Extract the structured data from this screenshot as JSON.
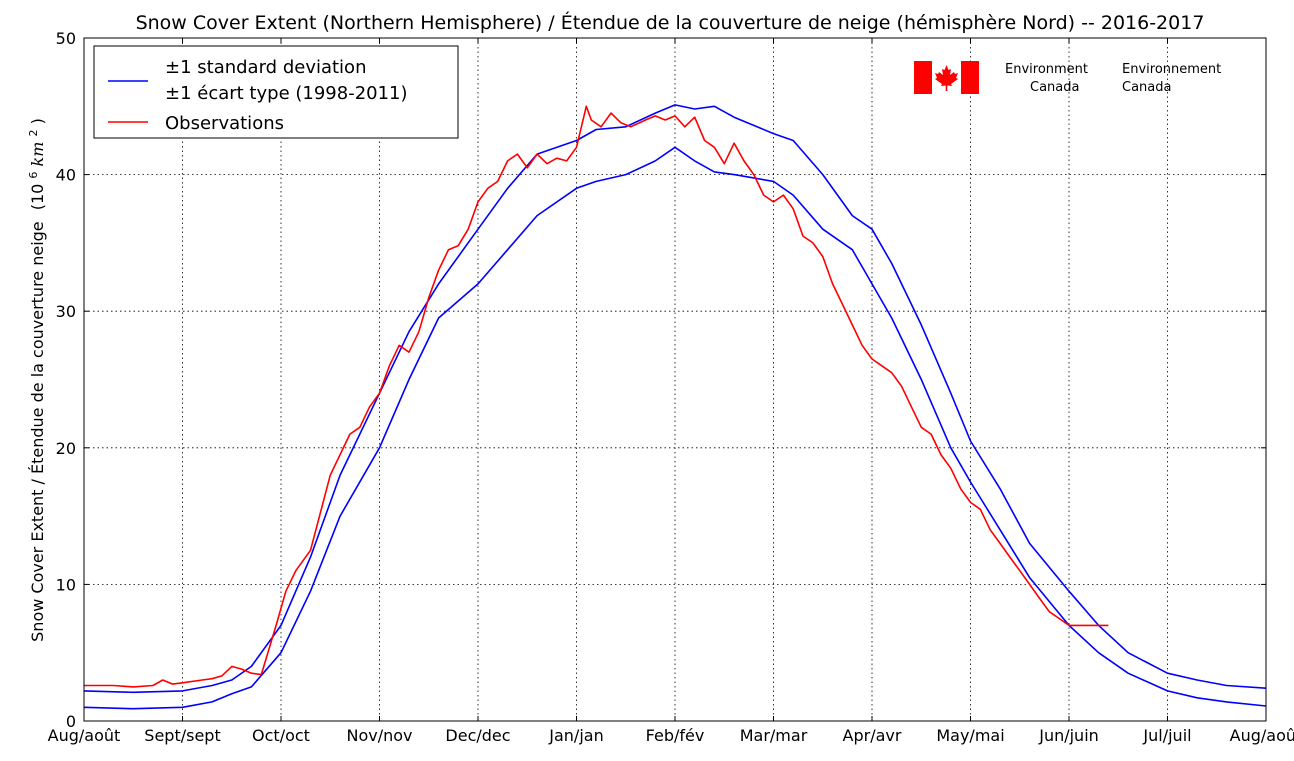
{
  "chart_data": {
    "type": "line",
    "title": "Snow Cover Extent (Northern Hemisphere) / Étendue de la couverture de neige (hémisphère Nord) -- 2016-2017",
    "ylabel": "Snow Cover Extent / Étendue de la couverture neige",
    "ylabel_unit": "(10",
    "ylabel_unit_sup": "6",
    "ylabel_unit_rest": " km",
    "ylabel_unit_sup2": "2",
    "ylabel_unit_close": " )",
    "ylim": [
      0,
      50
    ],
    "xlim": [
      0,
      12
    ],
    "grid": true,
    "legend_position": "top-left",
    "x_tick_labels": [
      "Aug/août",
      "Sept/sept",
      "Oct/oct",
      "Nov/nov",
      "Dec/dec",
      "Jan/jan",
      "Feb/fév",
      "Mar/mar",
      "Apr/avr",
      "May/mai",
      "Jun/juin",
      "Jul/juil",
      "Aug/août"
    ],
    "y_tick_labels": [
      "0",
      "10",
      "20",
      "30",
      "40",
      "50"
    ],
    "legend": {
      "std_line1": "±1 standard deviation",
      "std_line2": "±1 écart type (1998-2011)",
      "obs": "Observations"
    },
    "colors": {
      "std": "#0000ff",
      "obs": "#ff0000",
      "flag_red": "#ff0000"
    },
    "series": [
      {
        "name": "±1 standard deviation",
        "role": "upper",
        "x": [
          0,
          0.5,
          1,
          1.3,
          1.5,
          1.7,
          2,
          2.3,
          2.6,
          3,
          3.3,
          3.6,
          4,
          4.3,
          4.6,
          5,
          5.2,
          5.5,
          5.8,
          6,
          6.2,
          6.4,
          6.6,
          7,
          7.2,
          7.5,
          7.8,
          8,
          8.2,
          8.5,
          8.8,
          9,
          9.3,
          9.6,
          10,
          10.3,
          10.6,
          11,
          11.3,
          11.6,
          12
        ],
        "values": [
          2.2,
          2.1,
          2.2,
          2.6,
          3.0,
          4.0,
          7.0,
          12.0,
          18.0,
          24.0,
          28.5,
          32.0,
          36.0,
          39.0,
          41.5,
          42.5,
          43.3,
          43.5,
          44.5,
          45.1,
          44.8,
          45.0,
          44.2,
          43.0,
          42.5,
          40.0,
          37.0,
          36.0,
          33.5,
          29.0,
          24.0,
          20.5,
          17.0,
          13.0,
          9.5,
          7.0,
          5.0,
          3.5,
          3.0,
          2.6,
          2.4
        ]
      },
      {
        "name": "±1 écart type (1998-2011)",
        "role": "lower",
        "x": [
          0,
          0.5,
          1,
          1.3,
          1.5,
          1.7,
          2,
          2.3,
          2.6,
          3,
          3.3,
          3.6,
          4,
          4.3,
          4.6,
          5,
          5.2,
          5.5,
          5.8,
          6,
          6.2,
          6.4,
          6.6,
          7,
          7.2,
          7.5,
          7.8,
          8,
          8.2,
          8.5,
          8.8,
          9,
          9.3,
          9.6,
          10,
          10.3,
          10.6,
          11,
          11.3,
          11.6,
          12
        ],
        "values": [
          1.0,
          0.9,
          1.0,
          1.4,
          2.0,
          2.5,
          5.0,
          9.5,
          15.0,
          20.0,
          25.0,
          29.5,
          32.0,
          34.5,
          37.0,
          39.0,
          39.5,
          40.0,
          41.0,
          42.0,
          41.0,
          40.2,
          40.0,
          39.5,
          38.5,
          36.0,
          34.5,
          32.0,
          29.5,
          25.0,
          20.0,
          17.5,
          14.0,
          10.5,
          7.0,
          5.0,
          3.5,
          2.2,
          1.7,
          1.4,
          1.1
        ]
      },
      {
        "name": "Observations",
        "role": "obs",
        "x": [
          0,
          0.3,
          0.5,
          0.7,
          0.8,
          0.9,
          1.0,
          1.2,
          1.3,
          1.4,
          1.5,
          1.6,
          1.7,
          1.8,
          1.95,
          2.05,
          2.15,
          2.3,
          2.5,
          2.7,
          2.8,
          2.9,
          3.0,
          3.1,
          3.2,
          3.3,
          3.4,
          3.5,
          3.6,
          3.7,
          3.8,
          3.9,
          4.0,
          4.1,
          4.2,
          4.3,
          4.4,
          4.5,
          4.6,
          4.7,
          4.8,
          4.9,
          5.0,
          5.1,
          5.15,
          5.25,
          5.35,
          5.45,
          5.55,
          5.7,
          5.8,
          5.9,
          6.0,
          6.1,
          6.2,
          6.3,
          6.4,
          6.5,
          6.6,
          6.7,
          6.8,
          6.9,
          7.0,
          7.1,
          7.2,
          7.3,
          7.4,
          7.5,
          7.6,
          7.7,
          7.8,
          7.9,
          8.0,
          8.1,
          8.2,
          8.3,
          8.4,
          8.5,
          8.6,
          8.7,
          8.8,
          8.9,
          9.0,
          9.1,
          9.2,
          9.3,
          9.4,
          9.5,
          9.6,
          9.7,
          9.8,
          9.9,
          10.0,
          10.1,
          10.2,
          10.3,
          10.4
        ],
        "values": [
          2.6,
          2.6,
          2.5,
          2.6,
          3.0,
          2.7,
          2.8,
          3.0,
          3.1,
          3.3,
          4.0,
          3.8,
          3.5,
          3.4,
          7.0,
          9.5,
          11.0,
          12.5,
          18.0,
          21.0,
          21.5,
          23.0,
          24.0,
          26.0,
          27.5,
          27.0,
          28.5,
          31.0,
          33.0,
          34.5,
          34.8,
          36.0,
          38.0,
          39.0,
          39.5,
          41.0,
          41.5,
          40.5,
          41.5,
          40.8,
          41.2,
          41.0,
          42.0,
          45.0,
          44.0,
          43.5,
          44.5,
          43.8,
          43.5,
          44.0,
          44.3,
          44.0,
          44.3,
          43.5,
          44.2,
          42.5,
          42.0,
          40.8,
          42.3,
          41.0,
          40.0,
          38.5,
          38.0,
          38.5,
          37.5,
          35.5,
          35.0,
          34.0,
          32.0,
          30.5,
          29.0,
          27.5,
          26.5,
          26.0,
          25.5,
          24.5,
          23.0,
          21.5,
          21.0,
          19.5,
          18.5,
          17.0,
          16.0,
          15.5,
          14.0,
          13.0,
          12.0,
          11.0,
          10.0,
          9.0,
          8.0,
          7.5,
          7.0,
          7.0,
          7.0,
          7.0,
          7.0
        ]
      }
    ]
  },
  "logo": {
    "en_line1": "Environment",
    "en_line2": "Canada",
    "fr_line1": "Environnement",
    "fr_line2": "Canada",
    "flag_icon": "canada-flag-icon"
  }
}
